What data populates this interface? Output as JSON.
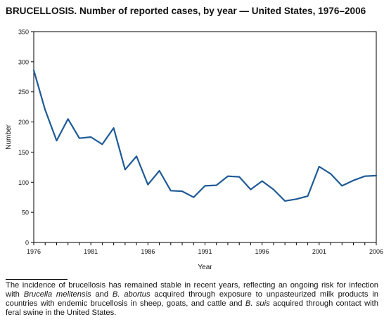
{
  "title": "BRUCELLOSIS. Number of reported cases, by year — United States, 1976–2006",
  "chart_data": {
    "type": "line",
    "title": "BRUCELLOSIS. Number of reported cases, by year — United States, 1976–2006",
    "xlabel": "Year",
    "ylabel": "Number",
    "xlim": [
      1976,
      2006
    ],
    "ylim": [
      0,
      350
    ],
    "x_ticks": [
      1976,
      1981,
      1986,
      1991,
      1996,
      2001,
      2006
    ],
    "y_ticks": [
      0,
      50,
      100,
      150,
      200,
      250,
      300,
      350
    ],
    "grid": false,
    "color": "#1f5a96",
    "x": [
      1976,
      1977,
      1978,
      1979,
      1980,
      1981,
      1982,
      1983,
      1984,
      1985,
      1986,
      1987,
      1988,
      1989,
      1990,
      1991,
      1992,
      1993,
      1994,
      1995,
      1996,
      1997,
      1998,
      1999,
      2000,
      2001,
      2002,
      2003,
      2004,
      2005,
      2006
    ],
    "values": [
      286,
      220,
      169,
      205,
      173,
      175,
      163,
      190,
      121,
      143,
      96,
      119,
      86,
      85,
      75,
      94,
      95,
      110,
      109,
      88,
      102,
      88,
      69,
      72,
      77,
      126,
      114,
      94,
      103,
      110,
      111
    ]
  },
  "footnote": {
    "part1": "The incidence of brucellosis has remained stable in recent years, reflecting an ongoing risk for infection with ",
    "italic1": "Brucella melitensis",
    "part2": " and ",
    "italic2": "B. abortus",
    "part3": " acquired through exposure to unpasteurized milk products in countries with endemic brucellosis in sheep, goats, and cattle and ",
    "italic3": "B. suis",
    "part4": " acquired through contact with feral swine in the United States."
  }
}
